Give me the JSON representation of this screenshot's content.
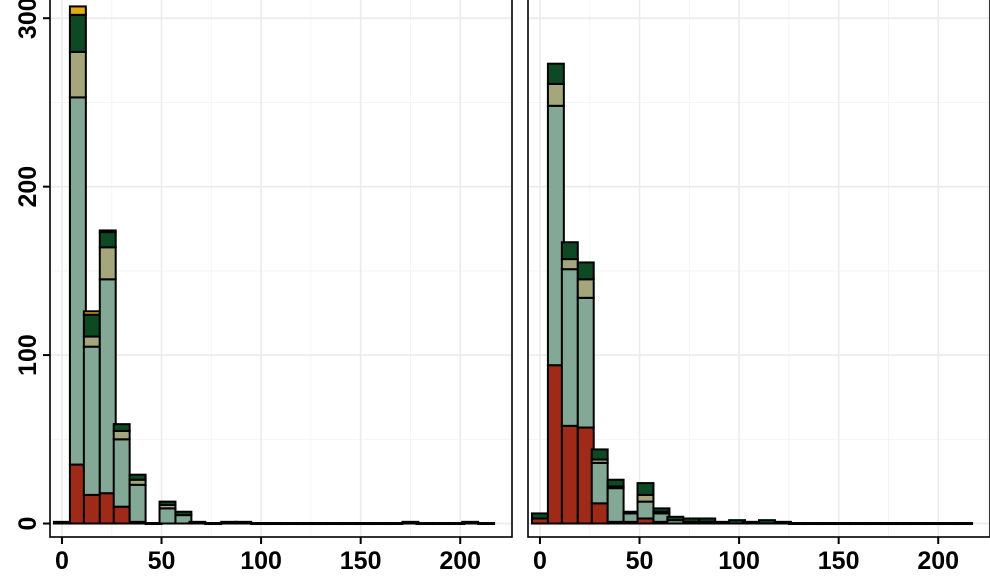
{
  "chart_data": {
    "type": "bar",
    "stacked": true,
    "grid": true,
    "legend": "none",
    "colors": [
      "#9e2a17",
      "#83a996",
      "#a5a67c",
      "#0d4a24",
      "#e2ad0d"
    ],
    "xlim": [
      -6,
      226
    ],
    "ylim": [
      -8,
      312
    ],
    "x_ticks": [
      0,
      50,
      100,
      150,
      200
    ],
    "x_tick_labels": [
      "0",
      "50",
      "100",
      "150",
      "200"
    ],
    "y_ticks": [
      0,
      100,
      200,
      300
    ],
    "y_tick_labels": [
      "0",
      "100",
      "200",
      "300"
    ],
    "bin_width": 8,
    "panels": [
      {
        "x": [
          0,
          8,
          15,
          23,
          30,
          38,
          46,
          53,
          61,
          68,
          76,
          84,
          91,
          99,
          106,
          114,
          122,
          129,
          137,
          144,
          152,
          160,
          167,
          175,
          182,
          190,
          198,
          205,
          213
        ],
        "series": [
          {
            "values": [
              0,
              35,
              17,
              18,
              10,
              1,
              0,
              0,
              0,
              0,
              0,
              0,
              0,
              0,
              0,
              0,
              0,
              0,
              0,
              0,
              0,
              0,
              0,
              0,
              0,
              0,
              0,
              0,
              0
            ]
          },
          {
            "values": [
              0,
              218,
              88,
              127,
              40,
              22,
              0,
              9,
              5,
              0,
              0,
              0,
              0,
              0,
              0,
              0,
              0,
              0,
              0,
              0,
              0,
              0,
              0,
              0,
              0,
              0,
              0,
              0,
              0
            ]
          },
          {
            "values": [
              0,
              27,
              6,
              19,
              5,
              3,
              0,
              2,
              0,
              0,
              0,
              0,
              0,
              0,
              0,
              0,
              0,
              0,
              0,
              0,
              0,
              0,
              0,
              0,
              0,
              0,
              0,
              0,
              0
            ]
          },
          {
            "values": [
              1,
              22,
              13,
              9,
              4,
              3,
              0,
              2,
              2,
              1,
              0,
              1,
              1,
              0,
              0,
              0,
              0,
              0,
              0,
              0,
              0,
              0,
              0,
              1,
              0,
              0,
              0,
              1,
              0
            ]
          },
          {
            "values": [
              0,
              5,
              2,
              1,
              0,
              0,
              0,
              0,
              0,
              0,
              0,
              0,
              0,
              0,
              0,
              0,
              0,
              0,
              0,
              0,
              0,
              0,
              0,
              0,
              0,
              0,
              0,
              0,
              0
            ]
          }
        ]
      },
      {
        "x": [
          0,
          8,
          15,
          23,
          30,
          38,
          46,
          53,
          61,
          68,
          76,
          84,
          91,
          99,
          106,
          114,
          122,
          129,
          137,
          144,
          152,
          160,
          167,
          175,
          182,
          190,
          198,
          205,
          213
        ],
        "series": [
          {
            "values": [
              3,
              94,
              58,
              57,
              12,
              1,
              1,
              3,
              1,
              0,
              0,
              0,
              0,
              0,
              0,
              0,
              0,
              0,
              0,
              0,
              0,
              0,
              0,
              0,
              0,
              0,
              0,
              0,
              0
            ]
          },
          {
            "values": [
              0,
              154,
              93,
              77,
              24,
              20,
              5,
              10,
              5,
              2,
              1,
              1,
              0,
              0,
              0,
              0,
              0,
              0,
              0,
              0,
              0,
              0,
              0,
              0,
              0,
              0,
              0,
              0,
              0
            ]
          },
          {
            "values": [
              0,
              13,
              6,
              11,
              2,
              1,
              0,
              4,
              1,
              0,
              0,
              0,
              0,
              0,
              0,
              0,
              0,
              0,
              0,
              0,
              0,
              0,
              0,
              0,
              0,
              0,
              0,
              0,
              0
            ]
          },
          {
            "values": [
              3,
              12,
              10,
              10,
              6,
              4,
              1,
              7,
              2,
              2,
              2,
              2,
              1,
              2,
              1,
              2,
              1,
              0,
              0,
              0,
              0,
              0,
              0,
              0,
              0,
              0,
              0,
              0,
              0
            ]
          },
          {
            "values": [
              0,
              0,
              0,
              0,
              0,
              0,
              0,
              0,
              0,
              0,
              0,
              0,
              0,
              0,
              0,
              0,
              0,
              0,
              0,
              0,
              0,
              0,
              0,
              0,
              0,
              0,
              0,
              0,
              0
            ]
          }
        ]
      }
    ]
  }
}
